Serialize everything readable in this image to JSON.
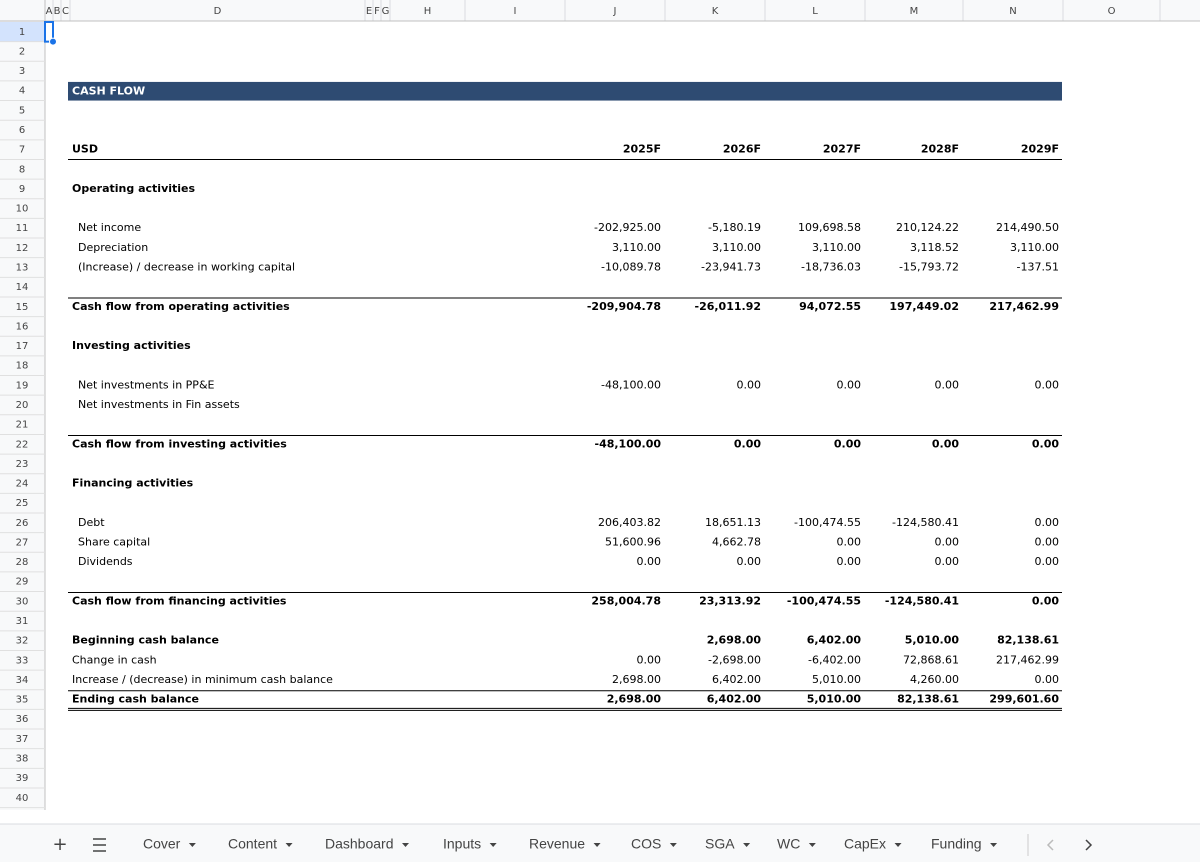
{
  "columns": [
    "A",
    "B",
    "C",
    "D",
    "E",
    "F",
    "G",
    "H",
    "I",
    "J",
    "K",
    "L",
    "M",
    "N",
    "O"
  ],
  "row_numbers": [
    1,
    2,
    3,
    4,
    5,
    6,
    7,
    8,
    9,
    10,
    11,
    12,
    13,
    14,
    15,
    16,
    17,
    18,
    19,
    20,
    21,
    22,
    23,
    24,
    25,
    26,
    27,
    28,
    29,
    30,
    31,
    32,
    33,
    34,
    35,
    36,
    37,
    38,
    39,
    40
  ],
  "sheet": {
    "title": "CASH FLOW",
    "currency": "USD",
    "years": [
      "2025F",
      "2026F",
      "2027F",
      "2028F",
      "2029F"
    ],
    "rows": [
      {
        "row": 9,
        "label": "Operating activities",
        "bold": true
      },
      {
        "row": 11,
        "label": "Net income",
        "indent": true,
        "values": [
          "-202,925.00",
          "-5,180.19",
          "109,698.58",
          "210,124.22",
          "214,490.50"
        ]
      },
      {
        "row": 12,
        "label": "Depreciation",
        "indent": true,
        "values": [
          "3,110.00",
          "3,110.00",
          "3,110.00",
          "3,118.52",
          "3,110.00"
        ]
      },
      {
        "row": 13,
        "label": "(Increase) / decrease in working capital",
        "indent": true,
        "values": [
          "-10,089.78",
          "-23,941.73",
          "-18,736.03",
          "-15,793.72",
          "-137.51"
        ]
      },
      {
        "row": 15,
        "label": "Cash flow from operating activities",
        "bold": true,
        "border": "top",
        "values": [
          "-209,904.78",
          "-26,011.92",
          "94,072.55",
          "197,449.02",
          "217,462.99"
        ]
      },
      {
        "row": 17,
        "label": "Investing activities",
        "bold": true
      },
      {
        "row": 19,
        "label": "Net investments in PP&E",
        "indent": true,
        "values": [
          "-48,100.00",
          "0.00",
          "0.00",
          "0.00",
          "0.00"
        ]
      },
      {
        "row": 20,
        "label": "Net investments in Fin assets",
        "indent": true
      },
      {
        "row": 22,
        "label": "Cash flow from investing activities",
        "bold": true,
        "border": "top",
        "values": [
          "-48,100.00",
          "0.00",
          "0.00",
          "0.00",
          "0.00"
        ]
      },
      {
        "row": 24,
        "label": "Financing activities",
        "bold": true
      },
      {
        "row": 26,
        "label": "Debt",
        "indent": true,
        "values": [
          "206,403.82",
          "18,651.13",
          "-100,474.55",
          "-124,580.41",
          "0.00"
        ]
      },
      {
        "row": 27,
        "label": "Share capital",
        "indent": true,
        "values": [
          "51,600.96",
          "4,662.78",
          "0.00",
          "0.00",
          "0.00"
        ]
      },
      {
        "row": 28,
        "label": "Dividends",
        "indent": true,
        "values": [
          "0.00",
          "0.00",
          "0.00",
          "0.00",
          "0.00"
        ]
      },
      {
        "row": 30,
        "label": "Cash flow from financing activities",
        "bold": true,
        "border": "top",
        "values": [
          "258,004.78",
          "23,313.92",
          "-100,474.55",
          "-124,580.41",
          "0.00"
        ]
      },
      {
        "row": 32,
        "label": "Beginning cash balance",
        "bold": true,
        "values": [
          null,
          "2,698.00",
          "6,402.00",
          "5,010.00",
          "82,138.61"
        ]
      },
      {
        "row": 33,
        "label": "Change in cash",
        "values": [
          "0.00",
          "-2,698.00",
          "-6,402.00",
          "72,868.61",
          "217,462.99"
        ]
      },
      {
        "row": 34,
        "label": "Increase / (decrease) in minimum cash balance",
        "values": [
          "2,698.00",
          "6,402.00",
          "5,010.00",
          "4,260.00",
          "0.00"
        ]
      },
      {
        "row": 35,
        "label": "Ending cash balance",
        "bold": true,
        "border": "double",
        "values": [
          "2,698.00",
          "6,402.00",
          "5,010.00",
          "82,138.61",
          "299,601.60"
        ]
      }
    ]
  },
  "tabs": [
    "Cover",
    "Content",
    "Dashboard",
    "Inputs",
    "Revenue",
    "COS",
    "SGA",
    "WC",
    "CapEx",
    "Funding"
  ]
}
